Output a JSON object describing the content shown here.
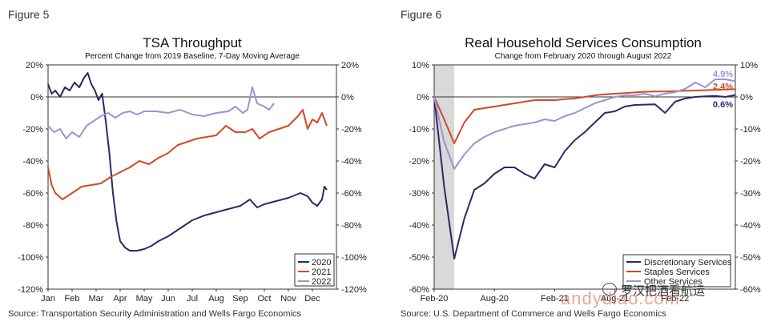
{
  "figures": [
    {
      "label": "Figure 5",
      "source": "Source: Transportation Security Administration and Wells Fargo Economics"
    },
    {
      "label": "Figure 6",
      "source": "Source: U.S. Department of Commerce and Wells Fargo Economics"
    }
  ],
  "watermark": {
    "text": "andydiao.com",
    "text2": "罗汉把酒看航运"
  },
  "colors": {
    "navy": "#2b2a64",
    "red": "#d24a24",
    "lavender": "#9b93d6",
    "shade": "#d9d9d9"
  },
  "chart_data": [
    {
      "type": "line",
      "title": "TSA Throughput",
      "subtitle": "Percent Change from 2019 Baseline, 7-Day Moving Average",
      "x_ticks": [
        "Jan",
        "Feb",
        "Mar",
        "Apr",
        "May",
        "Jun",
        "Jul",
        "Aug",
        "Sep",
        "Oct",
        "Nov",
        "Dec"
      ],
      "xlim": [
        0,
        12
      ],
      "ylim": [
        -120,
        20
      ],
      "y_ticks_left": [
        "20%",
        "0%",
        "-20%",
        "-40%",
        "-60%",
        "-80%",
        "-100%",
        "-120%"
      ],
      "y_ticks_right": [
        "20%",
        "0%",
        "-20%",
        "-40%",
        "-60%",
        "-80%",
        "-100%",
        "-120%"
      ],
      "legend_position": "bottom-right",
      "series": [
        {
          "name": "2020",
          "color": "#2b2a64",
          "x": [
            0,
            0.15,
            0.3,
            0.5,
            0.7,
            0.9,
            1.1,
            1.3,
            1.5,
            1.65,
            1.8,
            1.95,
            2.1,
            2.25,
            2.4,
            2.55,
            2.7,
            2.85,
            3.0,
            3.2,
            3.4,
            3.7,
            4.0,
            4.3,
            4.6,
            5.0,
            5.5,
            6.0,
            6.5,
            7.0,
            7.5,
            8.0,
            8.4,
            8.7,
            9.0,
            9.5,
            10.0,
            10.5,
            10.8,
            11.0,
            11.2,
            11.4,
            11.5,
            11.6
          ],
          "y": [
            8,
            2,
            4,
            0,
            6,
            4,
            9,
            6,
            12,
            15,
            8,
            4,
            -2,
            2,
            -15,
            -35,
            -60,
            -78,
            -90,
            -94,
            -96,
            -96,
            -95,
            -93,
            -90,
            -87,
            -82,
            -77,
            -74,
            -72,
            -70,
            -68,
            -64,
            -69,
            -67,
            -65,
            -63,
            -60,
            -62,
            -66,
            -68,
            -64,
            -56,
            -58
          ]
        },
        {
          "name": "2021",
          "color": "#d24a24",
          "x": [
            0,
            0.15,
            0.3,
            0.6,
            1.0,
            1.4,
            1.8,
            2.2,
            2.6,
            3.0,
            3.4,
            3.8,
            4.2,
            4.6,
            5.0,
            5.4,
            5.8,
            6.2,
            6.6,
            7.0,
            7.4,
            7.8,
            8.2,
            8.5,
            8.8,
            9.2,
            9.6,
            10.0,
            10.4,
            10.6,
            10.8,
            11.0,
            11.2,
            11.4,
            11.6
          ],
          "y": [
            -44,
            -55,
            -60,
            -64,
            -60,
            -56,
            -55,
            -54,
            -50,
            -47,
            -44,
            -40,
            -42,
            -38,
            -35,
            -30,
            -28,
            -26,
            -25,
            -24,
            -18,
            -22,
            -22,
            -20,
            -26,
            -22,
            -20,
            -18,
            -12,
            -8,
            -20,
            -14,
            -16,
            -10,
            -18
          ]
        },
        {
          "name": "2022",
          "color": "#9b93d6",
          "x": [
            0,
            0.25,
            0.5,
            0.75,
            1.0,
            1.3,
            1.6,
            1.9,
            2.2,
            2.5,
            2.8,
            3.1,
            3.4,
            3.7,
            4.0,
            4.5,
            5.0,
            5.5,
            6.0,
            6.5,
            7.0,
            7.5,
            7.8,
            8.1,
            8.3,
            8.5,
            8.7,
            9.0,
            9.2,
            9.4
          ],
          "y": [
            -18,
            -22,
            -20,
            -26,
            -22,
            -25,
            -18,
            -15,
            -12,
            -10,
            -13,
            -10,
            -9,
            -11,
            -9,
            -9,
            -10,
            -8,
            -11,
            -12,
            -10,
            -9,
            -6,
            -10,
            -8,
            6,
            -4,
            -6,
            -8,
            -4
          ]
        }
      ]
    },
    {
      "type": "line",
      "title": "Real Household Services Consumption",
      "subtitle": "Change from February 2020 through August 2022",
      "x_ticks": [
        "Feb-20",
        "Aug-20",
        "Feb-21",
        "Aug-21",
        "Feb-22"
      ],
      "x_tick_index": [
        0,
        6,
        12,
        18,
        24
      ],
      "xlim": [
        0,
        30
      ],
      "ylim": [
        -60,
        10
      ],
      "y_ticks_left": [
        "10%",
        "0%",
        "-10%",
        "-20%",
        "-30%",
        "-40%",
        "-50%",
        "-60%"
      ],
      "y_ticks_right": [
        "10%",
        "0%",
        "-10%",
        "-20%",
        "-30%",
        "-40%",
        "-50%",
        "-60%"
      ],
      "shaded_x": [
        0,
        2
      ],
      "legend_position": "bottom-right",
      "end_labels": [
        {
          "text": "4.9%",
          "color": "#9b93d6"
        },
        {
          "text": "2.4%",
          "color": "#d24a24"
        },
        {
          "text": "0.6%",
          "color": "#2b2a64"
        }
      ],
      "series": [
        {
          "name": "Discretionary Services",
          "color": "#2b2a64",
          "y": [
            0,
            -28,
            -50.5,
            -38,
            -29,
            -27,
            -24,
            -22,
            -22,
            -24,
            -25.5,
            -21,
            -22,
            -17,
            -13.5,
            -11,
            -8,
            -5,
            -4.5,
            -3,
            -2.5,
            -2.4,
            -2.3,
            -5,
            -1.5,
            -0.5,
            0,
            0.2,
            0.3,
            0,
            0.6
          ]
        },
        {
          "name": "Staples Services",
          "color": "#d24a24",
          "y": [
            0,
            -7,
            -14.5,
            -8,
            -4,
            -3.5,
            -3,
            -2.5,
            -2,
            -1.5,
            -1,
            -1,
            -1,
            -0.7,
            -0.5,
            0,
            0.5,
            0.8,
            1,
            1.2,
            1.4,
            1.6,
            1.7,
            1.7,
            1.8,
            1.9,
            2.0,
            2.1,
            2.2,
            2.3,
            2.4
          ]
        },
        {
          "name": "Other Services",
          "color": "#9b93d6",
          "y": [
            0,
            -14,
            -22.5,
            -18,
            -14.5,
            -12.5,
            -11,
            -10,
            -9,
            -8.5,
            -8,
            -7,
            -7.5,
            -6,
            -5,
            -3.5,
            -2,
            -1,
            0,
            0.5,
            0.5,
            1,
            0.2,
            1,
            1.5,
            2.5,
            4.5,
            3,
            5.5,
            5.5,
            4.9
          ]
        }
      ]
    }
  ]
}
